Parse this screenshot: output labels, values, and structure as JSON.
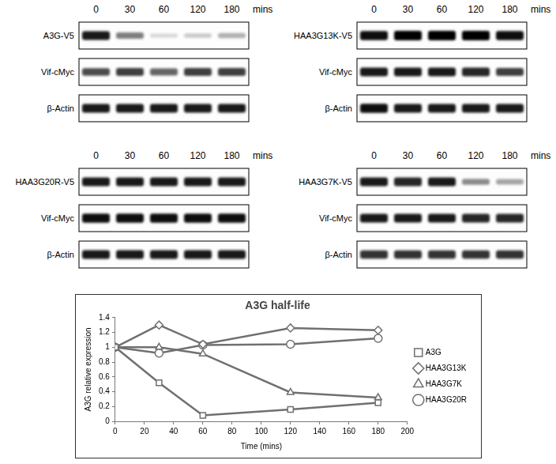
{
  "chart_data": {
    "type": "line",
    "title": "A3G half-life",
    "x_label": "Time (mins)",
    "y_label": "A3G relative expression",
    "xlim": [
      0,
      200
    ],
    "xticks": [
      0,
      20,
      40,
      60,
      80,
      100,
      120,
      140,
      160,
      180,
      200
    ],
    "ylim": [
      0,
      1.4
    ],
    "yticks": [
      0,
      0.2,
      0.4,
      0.6,
      0.8,
      1,
      1.2,
      1.4
    ],
    "grid": false,
    "legend": "right",
    "x": [
      0,
      30,
      60,
      120,
      180
    ],
    "series": [
      {
        "name": "A3G",
        "color": "#707070",
        "marker": "square",
        "values": [
          1,
          0.52,
          0.08,
          0.16,
          0.25
        ]
      },
      {
        "name": "HAA3G13K",
        "color": "#707070",
        "marker": "diamond",
        "values": [
          1,
          1.3,
          1.04,
          1.26,
          1.23
        ]
      },
      {
        "name": "HAA3G7K",
        "color": "#707070",
        "marker": "triangle",
        "values": [
          1,
          1.0,
          0.91,
          0.39,
          0.32
        ]
      },
      {
        "name": "HAA3G20R",
        "color": "#707070",
        "marker": "circle",
        "values": [
          1,
          0.92,
          1.03,
          1.04,
          1.12
        ]
      }
    ]
  },
  "blots": [
    {
      "time_labels": [
        "0",
        "30",
        "60",
        "120",
        "180"
      ],
      "time_unit": "mins",
      "rows": [
        {
          "label": "A3G-V5",
          "intensity": [
            0.9,
            0.5,
            0.15,
            0.2,
            0.3
          ]
        },
        {
          "label": "Vif-cMyc",
          "intensity": [
            0.7,
            0.75,
            0.6,
            0.75,
            0.75
          ]
        },
        {
          "label": "β-Actin",
          "intensity": [
            0.9,
            0.9,
            0.9,
            0.9,
            0.9
          ]
        }
      ]
    },
    {
      "time_labels": [
        "0",
        "30",
        "60",
        "120",
        "180"
      ],
      "time_unit": "mins",
      "rows": [
        {
          "label": "HAA3G13K-V5",
          "intensity": [
            0.95,
            1,
            1,
            1,
            0.95
          ]
        },
        {
          "label": "Vif-cMyc",
          "intensity": [
            0.9,
            0.9,
            0.9,
            0.85,
            0.75
          ]
        },
        {
          "label": "β-Actin",
          "intensity": [
            0.95,
            0.9,
            0.9,
            0.9,
            0.9
          ]
        }
      ]
    },
    {
      "time_labels": [
        "0",
        "30",
        "60",
        "120",
        "180"
      ],
      "time_unit": "mins",
      "rows": [
        {
          "label": "HAA3G20R-V5",
          "intensity": [
            0.9,
            0.9,
            0.9,
            0.9,
            0.9
          ]
        },
        {
          "label": "Vif-cMyc",
          "intensity": [
            0.95,
            0.95,
            0.95,
            0.95,
            0.95
          ]
        },
        {
          "label": "β-Actin",
          "intensity": [
            0.9,
            0.9,
            0.9,
            0.9,
            0.9
          ]
        }
      ]
    },
    {
      "time_labels": [
        "0",
        "30",
        "60",
        "120",
        "180"
      ],
      "time_unit": "mins",
      "rows": [
        {
          "label": "HAA3G7K-V5",
          "intensity": [
            0.9,
            0.85,
            0.9,
            0.45,
            0.35
          ]
        },
        {
          "label": "Vif-cMyc",
          "intensity": [
            0.9,
            0.9,
            0.9,
            0.85,
            0.85
          ]
        },
        {
          "label": "β-Actin",
          "intensity": [
            0.8,
            0.8,
            0.8,
            0.8,
            0.8
          ]
        }
      ]
    }
  ]
}
